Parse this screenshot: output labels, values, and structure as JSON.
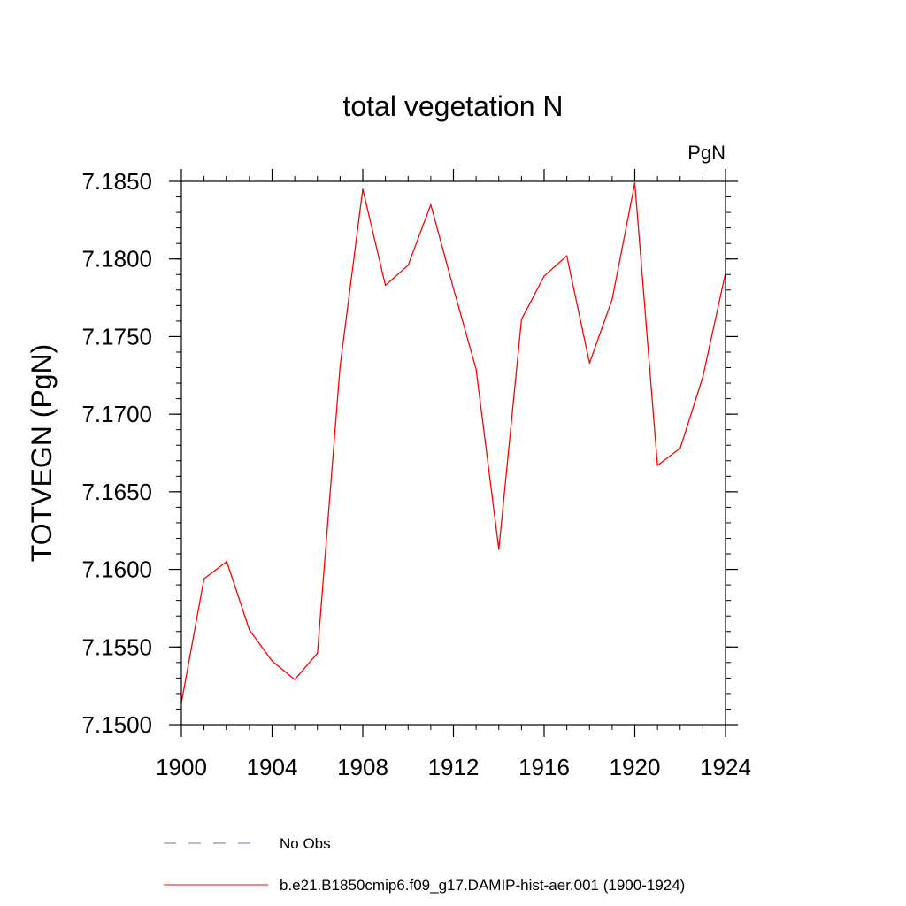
{
  "chart_data": {
    "type": "line",
    "title": "total vegetation N",
    "units_label": "PgN",
    "ylabel": "TOTVEGN  (PgN)",
    "xlabel": "",
    "xlim": [
      1900,
      1924
    ],
    "ylim": [
      7.15,
      7.185
    ],
    "x_ticks": [
      1900,
      1904,
      1908,
      1912,
      1916,
      1920,
      1924
    ],
    "x_tick_labels": [
      "1900",
      "1904",
      "1908",
      "1912",
      "1916",
      "1920",
      "1924"
    ],
    "y_ticks": [
      7.15,
      7.155,
      7.16,
      7.165,
      7.17,
      7.175,
      7.18,
      7.185
    ],
    "y_tick_labels": [
      "7.1500",
      "7.1550",
      "7.1600",
      "7.1650",
      "7.1700",
      "7.1750",
      "7.1800",
      "7.1850"
    ],
    "grid": false,
    "legend_position": "bottom",
    "series": [
      {
        "name": "b.e21.B1850cmip6.f09_g17.DAMIP-hist-aer.001 (1900-1924)",
        "color": "#ff0000",
        "style": "solid",
        "x": [
          1900,
          1901,
          1902,
          1903,
          1904,
          1905,
          1906,
          1907,
          1908,
          1909,
          1910,
          1911,
          1912,
          1913,
          1914,
          1915,
          1916,
          1917,
          1918,
          1919,
          1920,
          1921,
          1922,
          1923,
          1924
        ],
        "values": [
          7.1514,
          7.1594,
          7.1605,
          7.1561,
          7.1541,
          7.1529,
          7.1546,
          7.1731,
          7.1845,
          7.1783,
          7.1796,
          7.1835,
          7.1781,
          7.1729,
          7.1613,
          7.1761,
          7.1789,
          7.1802,
          7.1733,
          7.1774,
          7.1849,
          7.1667,
          7.1678,
          7.1724,
          7.1791
        ]
      },
      {
        "name": "No Obs",
        "color": "#7b6fb3",
        "style": "dashed",
        "x": [],
        "values": []
      }
    ]
  }
}
